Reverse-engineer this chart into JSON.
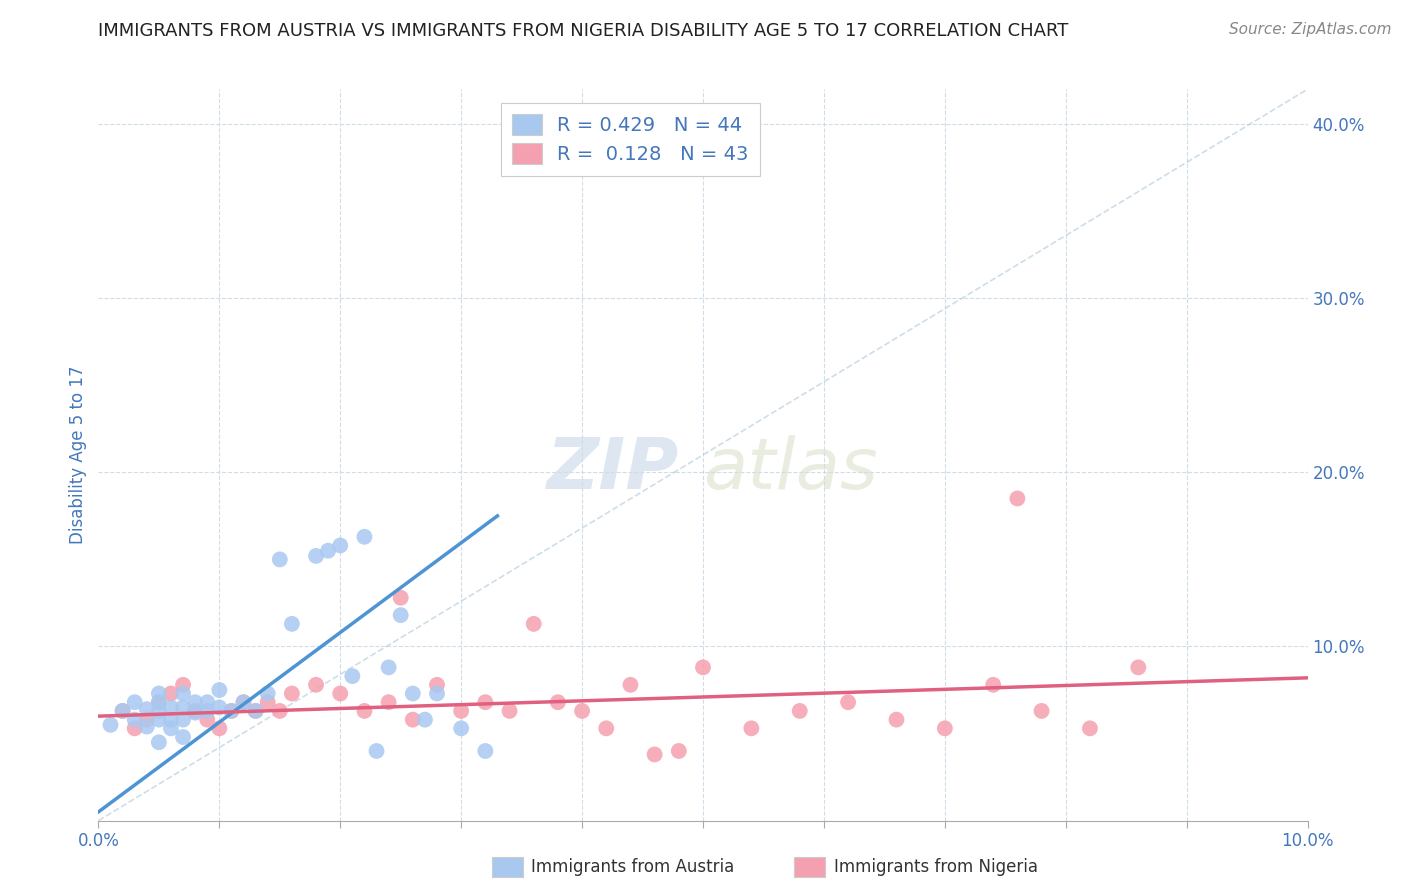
{
  "title": "IMMIGRANTS FROM AUSTRIA VS IMMIGRANTS FROM NIGERIA DISABILITY AGE 5 TO 17 CORRELATION CHART",
  "source": "Source: ZipAtlas.com",
  "ylabel": "Disability Age 5 to 17",
  "xlim": [
    0.0,
    0.1
  ],
  "ylim": [
    0.0,
    0.42
  ],
  "xticks": [
    0.0,
    0.01,
    0.02,
    0.03,
    0.04,
    0.05,
    0.06,
    0.07,
    0.08,
    0.09,
    0.1
  ],
  "xticklabels_show": [
    "0.0%",
    "",
    "",
    "",
    "",
    "",
    "",
    "",
    "",
    "",
    "10.0%"
  ],
  "yticks": [
    0.0,
    0.1,
    0.2,
    0.3,
    0.4
  ],
  "yticklabels_right": [
    "",
    "10.0%",
    "20.0%",
    "30.0%",
    "40.0%"
  ],
  "legend_austria": "Immigrants from Austria",
  "legend_nigeria": "Immigrants from Nigeria",
  "R_austria": "0.429",
  "N_austria": "44",
  "R_nigeria": "0.128",
  "N_nigeria": "43",
  "austria_color": "#a8c8f0",
  "nigeria_color": "#f5a0b0",
  "austria_line_color": "#4d94d4",
  "nigeria_line_color": "#e06080",
  "diagonal_color": "#b8cfe0",
  "axis_label_color": "#4477bb",
  "tick_color": "#4477bb",
  "grid_color": "#d0dde8",
  "watermark_color": "#c8d8e8",
  "austria_scatter_x": [
    0.001,
    0.002,
    0.003,
    0.003,
    0.004,
    0.004,
    0.005,
    0.005,
    0.005,
    0.005,
    0.005,
    0.006,
    0.006,
    0.006,
    0.007,
    0.007,
    0.007,
    0.007,
    0.008,
    0.008,
    0.009,
    0.009,
    0.01,
    0.01,
    0.011,
    0.012,
    0.013,
    0.014,
    0.015,
    0.016,
    0.018,
    0.019,
    0.02,
    0.021,
    0.022,
    0.023,
    0.024,
    0.025,
    0.026,
    0.027,
    0.028,
    0.03,
    0.032,
    0.036
  ],
  "austria_scatter_y": [
    0.055,
    0.063,
    0.058,
    0.068,
    0.054,
    0.064,
    0.058,
    0.063,
    0.068,
    0.073,
    0.045,
    0.053,
    0.058,
    0.065,
    0.048,
    0.058,
    0.065,
    0.073,
    0.062,
    0.068,
    0.068,
    0.063,
    0.075,
    0.065,
    0.063,
    0.068,
    0.063,
    0.073,
    0.15,
    0.113,
    0.152,
    0.155,
    0.158,
    0.083,
    0.163,
    0.04,
    0.088,
    0.118,
    0.073,
    0.058,
    0.073,
    0.053,
    0.04,
    0.38
  ],
  "nigeria_scatter_x": [
    0.002,
    0.003,
    0.004,
    0.005,
    0.006,
    0.007,
    0.008,
    0.009,
    0.01,
    0.011,
    0.012,
    0.013,
    0.014,
    0.015,
    0.016,
    0.018,
    0.02,
    0.022,
    0.024,
    0.025,
    0.026,
    0.028,
    0.03,
    0.032,
    0.034,
    0.036,
    0.038,
    0.04,
    0.042,
    0.044,
    0.046,
    0.048,
    0.05,
    0.054,
    0.058,
    0.062,
    0.066,
    0.07,
    0.074,
    0.078,
    0.082,
    0.076,
    0.086
  ],
  "nigeria_scatter_y": [
    0.063,
    0.053,
    0.058,
    0.068,
    0.073,
    0.078,
    0.063,
    0.058,
    0.053,
    0.063,
    0.068,
    0.063,
    0.068,
    0.063,
    0.073,
    0.078,
    0.073,
    0.063,
    0.068,
    0.128,
    0.058,
    0.078,
    0.063,
    0.068,
    0.063,
    0.113,
    0.068,
    0.063,
    0.053,
    0.078,
    0.038,
    0.04,
    0.088,
    0.053,
    0.063,
    0.068,
    0.058,
    0.053,
    0.078,
    0.063,
    0.053,
    0.185,
    0.088
  ],
  "austria_line_x": [
    0.0,
    0.033
  ],
  "austria_line_y": [
    0.005,
    0.175
  ],
  "nigeria_line_x": [
    0.0,
    0.1
  ],
  "nigeria_line_y": [
    0.06,
    0.082
  ],
  "figsize": [
    14.06,
    8.92
  ],
  "dpi": 100
}
